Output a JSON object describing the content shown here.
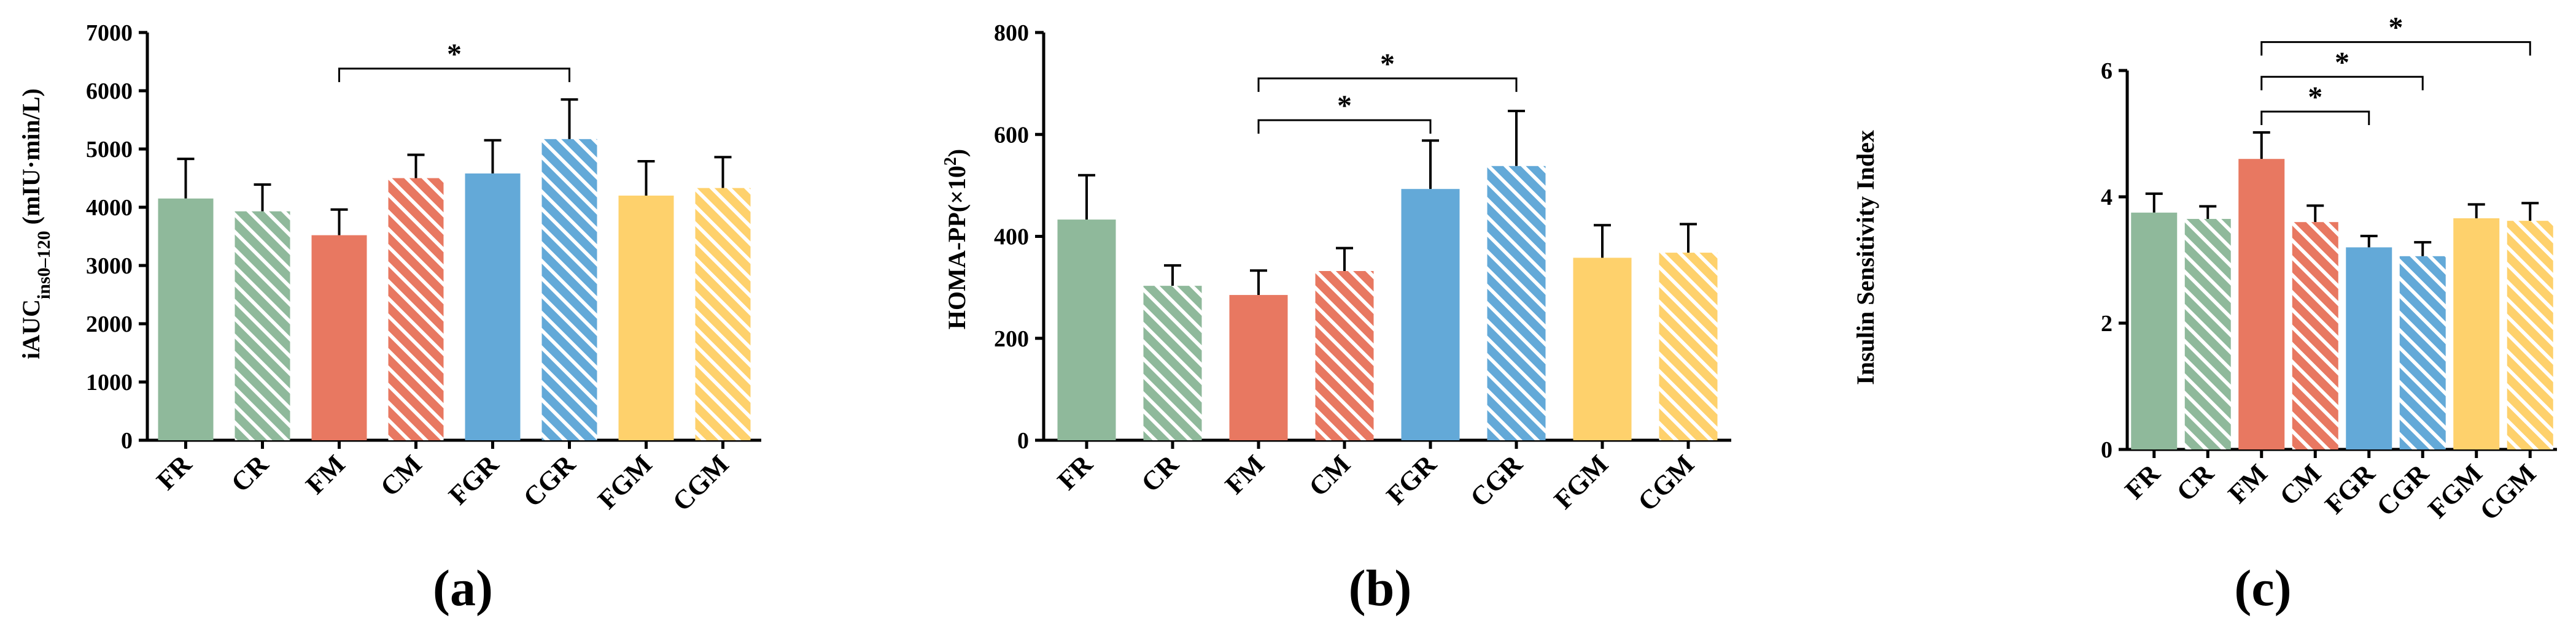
{
  "colors": {
    "green": "#8fb99b",
    "red": "#e87861",
    "blue": "#63a9d8",
    "yellow": "#fed16c",
    "axis": "#000000"
  },
  "chart_data": [
    {
      "type": "bar",
      "panel_label": "(a)",
      "title": "",
      "xlabel": "",
      "ylabel_main": "iAUC",
      "ylabel_sub": "ins0–120",
      "ylabel_unit": " (mIU·min/L)",
      "ylim": [
        0,
        7000
      ],
      "yticks": [
        0,
        1000,
        2000,
        3000,
        4000,
        5000,
        6000,
        7000
      ],
      "ytick_labels": [
        "0",
        "1000",
        "2000",
        "3000",
        "4000",
        "5000",
        "6000",
        "7000"
      ],
      "categories": [
        "FR",
        "CR",
        "FM",
        "CM",
        "FGR",
        "CGR",
        "FGM",
        "CGM"
      ],
      "bar_colors": [
        "green",
        "green",
        "red",
        "red",
        "blue",
        "blue",
        "yellow",
        "yellow"
      ],
      "hatched": [
        false,
        true,
        false,
        true,
        false,
        true,
        false,
        true
      ],
      "values": [
        4150,
        3930,
        3520,
        4500,
        4580,
        5170,
        4200,
        4330
      ],
      "errors": [
        680,
        460,
        440,
        400,
        570,
        680,
        590,
        530
      ],
      "significance": [
        {
          "from": "FM",
          "to": "CGR",
          "label": "*",
          "y": 6380
        }
      ]
    },
    {
      "type": "bar",
      "panel_label": "(b)",
      "title": "",
      "xlabel": "",
      "ylabel_main": "HOMA-PP(×10",
      "ylabel_sup": "2",
      "ylabel_end": ")",
      "ylim": [
        0,
        800
      ],
      "yticks": [
        0,
        200,
        400,
        600,
        800
      ],
      "ytick_labels": [
        "0",
        "200",
        "400",
        "600",
        "800"
      ],
      "categories": [
        "FR",
        "CR",
        "FM",
        "CM",
        "FGR",
        "CGR",
        "FGM",
        "CGM"
      ],
      "bar_colors": [
        "green",
        "green",
        "red",
        "red",
        "blue",
        "blue",
        "yellow",
        "yellow"
      ],
      "hatched": [
        false,
        true,
        false,
        true,
        false,
        true,
        false,
        true
      ],
      "values": [
        433,
        303,
        285,
        332,
        493,
        538,
        358,
        368
      ],
      "errors": [
        87,
        40,
        48,
        45,
        95,
        108,
        64,
        56
      ],
      "significance": [
        {
          "from": "FM",
          "to": "FGR",
          "label": "*",
          "y": 628
        },
        {
          "from": "FM",
          "to": "CGR",
          "label": "*",
          "y": 710
        }
      ]
    },
    {
      "type": "bar",
      "panel_label": "(c)",
      "title": "",
      "xlabel": "",
      "ylabel_main": "Insulin Sensitivity Index",
      "ylim": [
        0,
        6
      ],
      "yticks": [
        0,
        2,
        4,
        6
      ],
      "ytick_labels": [
        "0",
        "2",
        "4",
        "6"
      ],
      "categories": [
        "FR",
        "CR",
        "FM",
        "CM",
        "FGR",
        "CGR",
        "FGM",
        "CGM"
      ],
      "bar_colors": [
        "green",
        "green",
        "red",
        "red",
        "blue",
        "blue",
        "yellow",
        "yellow"
      ],
      "hatched": [
        false,
        true,
        false,
        true,
        false,
        true,
        false,
        true
      ],
      "values": [
        3.75,
        3.65,
        4.6,
        3.6,
        3.2,
        3.06,
        3.66,
        3.62
      ],
      "errors": [
        0.3,
        0.2,
        0.42,
        0.26,
        0.18,
        0.22,
        0.22,
        0.28
      ],
      "significance": [
        {
          "from": "FM",
          "to": "FGR",
          "label": "*",
          "y": 5.35
        },
        {
          "from": "FM",
          "to": "CGR",
          "label": "*",
          "y": 5.9
        },
        {
          "from": "FM",
          "to": "CGM",
          "label": "*",
          "y": 6.45
        }
      ]
    }
  ]
}
